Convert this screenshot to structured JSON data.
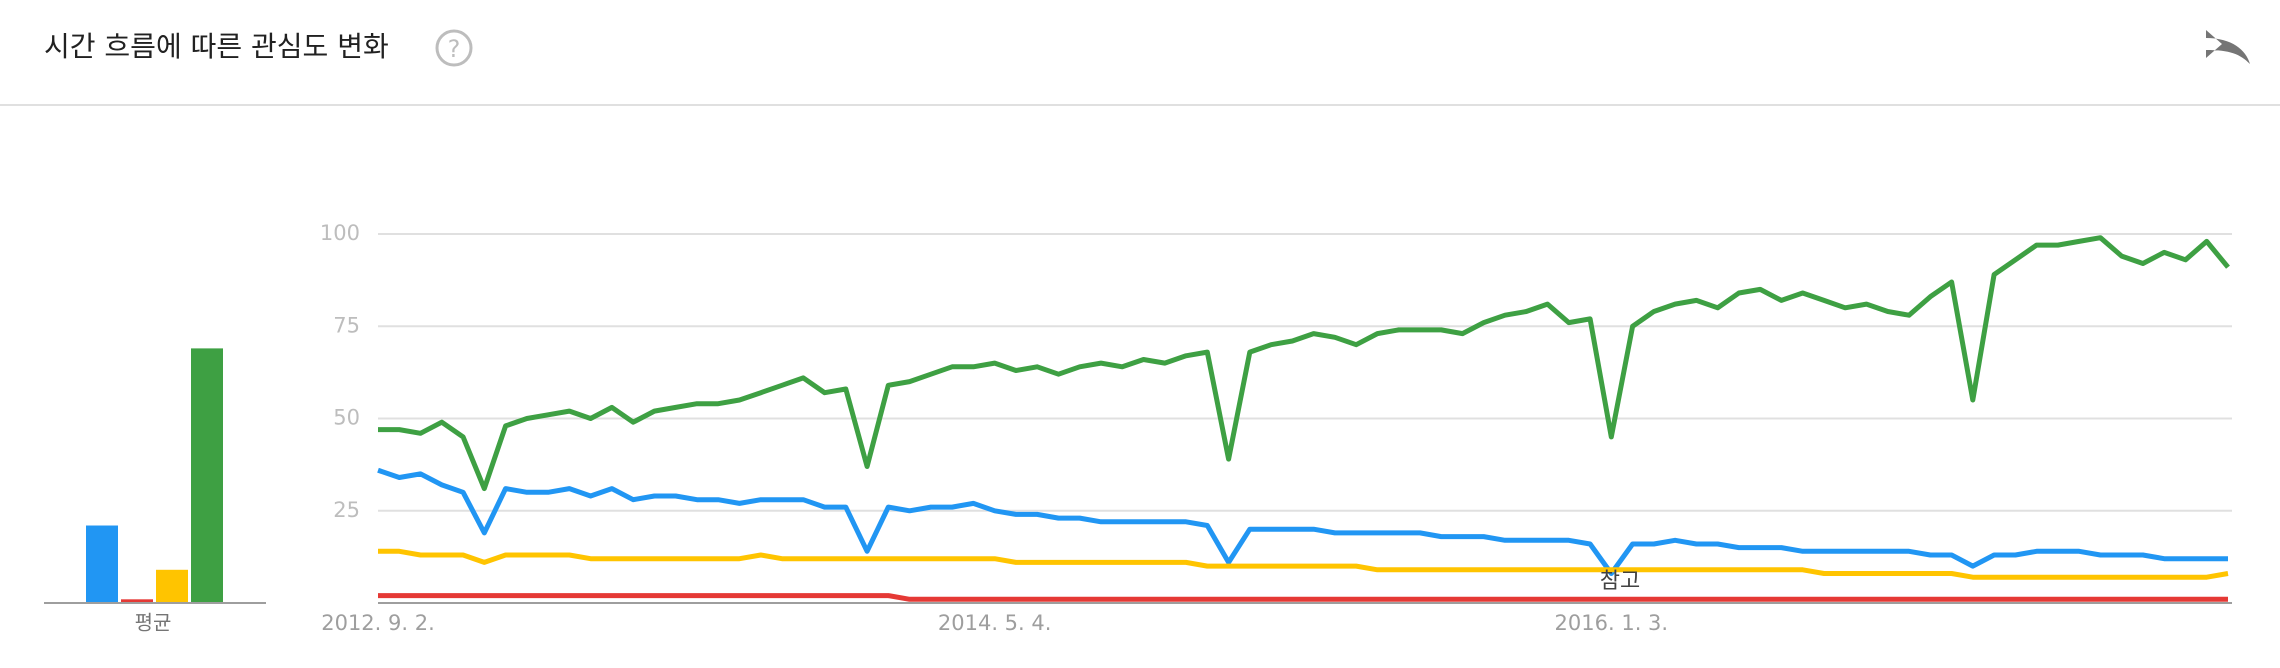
{
  "header": {
    "title": "시간 흐름에 따른 관심도 변화"
  },
  "annotation": "참고",
  "chart_data": [
    {
      "type": "bar",
      "categories": [
        "평균"
      ],
      "series": [
        {
          "color": "#2196f3",
          "values": [
            21
          ]
        },
        {
          "color": "#e53935",
          "values": [
            1
          ]
        },
        {
          "color": "#ffc400",
          "values": [
            9
          ]
        },
        {
          "color": "#3ea043",
          "values": [
            69
          ]
        }
      ],
      "ylim": [
        0,
        100
      ]
    },
    {
      "type": "line",
      "categories": [
        "2012. 9. 2.",
        null,
        null,
        null,
        null,
        null,
        null,
        null,
        null,
        null,
        null,
        null,
        null,
        null,
        null,
        null,
        null,
        null,
        null,
        null,
        null,
        null,
        null,
        null,
        null,
        null,
        null,
        null,
        null,
        "2014. 5. 4.",
        null,
        null,
        null,
        null,
        null,
        null,
        null,
        null,
        null,
        null,
        null,
        null,
        null,
        null,
        null,
        null,
        null,
        null,
        null,
        null,
        null,
        null,
        null,
        null,
        null,
        null,
        null,
        null,
        "2016. 1. 3.",
        null,
        null,
        null,
        null,
        null,
        null,
        null,
        null,
        null,
        null,
        null,
        null,
        null,
        null,
        null,
        null,
        null,
        null,
        null,
        null,
        null,
        null,
        null,
        null,
        null,
        null,
        null,
        null,
        null
      ],
      "series": [
        {
          "color": "#2196f3",
          "values": [
            36,
            34,
            35,
            32,
            30,
            19,
            31,
            30,
            30,
            31,
            29,
            31,
            28,
            29,
            29,
            28,
            28,
            27,
            28,
            28,
            28,
            26,
            26,
            14,
            26,
            25,
            26,
            26,
            27,
            25,
            24,
            24,
            23,
            23,
            22,
            22,
            22,
            22,
            22,
            21,
            11,
            20,
            20,
            20,
            20,
            19,
            19,
            19,
            19,
            19,
            18,
            18,
            18,
            17,
            17,
            17,
            17,
            16,
            8,
            16,
            16,
            17,
            16,
            16,
            15,
            15,
            15,
            14,
            14,
            14,
            14,
            14,
            14,
            13,
            13,
            10,
            13,
            13,
            14,
            14,
            14,
            13,
            13,
            13,
            12,
            12,
            12,
            12
          ]
        },
        {
          "color": "#e53935",
          "values": [
            2,
            2,
            2,
            2,
            2,
            2,
            2,
            2,
            2,
            2,
            2,
            2,
            2,
            2,
            2,
            2,
            2,
            2,
            2,
            2,
            2,
            2,
            2,
            2,
            2,
            1,
            1,
            1,
            1,
            1,
            1,
            1,
            1,
            1,
            1,
            1,
            1,
            1,
            1,
            1,
            1,
            1,
            1,
            1,
            1,
            1,
            1,
            1,
            1,
            1,
            1,
            1,
            1,
            1,
            1,
            1,
            1,
            1,
            1,
            1,
            1,
            1,
            1,
            1,
            1,
            1,
            1,
            1,
            1,
            1,
            1,
            1,
            1,
            1,
            1,
            1,
            1,
            1,
            1,
            1,
            1,
            1,
            1,
            1,
            1,
            1,
            1,
            1
          ]
        },
        {
          "color": "#ffc400",
          "values": [
            14,
            14,
            13,
            13,
            13,
            11,
            13,
            13,
            13,
            13,
            12,
            12,
            12,
            12,
            12,
            12,
            12,
            12,
            13,
            12,
            12,
            12,
            12,
            12,
            12,
            12,
            12,
            12,
            12,
            12,
            11,
            11,
            11,
            11,
            11,
            11,
            11,
            11,
            11,
            10,
            10,
            10,
            10,
            10,
            10,
            10,
            10,
            9,
            9,
            9,
            9,
            9,
            9,
            9,
            9,
            9,
            9,
            9,
            9,
            9,
            9,
            9,
            9,
            9,
            9,
            9,
            9,
            9,
            8,
            8,
            8,
            8,
            8,
            8,
            8,
            7,
            7,
            7,
            7,
            7,
            7,
            7,
            7,
            7,
            7,
            7,
            7,
            8
          ]
        },
        {
          "color": "#3ea043",
          "values": [
            47,
            47,
            46,
            49,
            45,
            31,
            48,
            50,
            51,
            52,
            50,
            53,
            49,
            52,
            53,
            54,
            54,
            55,
            57,
            59,
            61,
            57,
            58,
            37,
            59,
            60,
            62,
            64,
            64,
            65,
            63,
            64,
            62,
            64,
            65,
            64,
            66,
            65,
            67,
            68,
            39,
            68,
            70,
            71,
            73,
            72,
            70,
            73,
            74,
            74,
            74,
            73,
            76,
            78,
            79,
            81,
            76,
            77,
            45,
            75,
            79,
            81,
            82,
            80,
            84,
            85,
            82,
            84,
            82,
            80,
            81,
            79,
            78,
            83,
            87,
            55,
            89,
            93,
            97,
            97,
            98,
            99,
            94,
            92,
            95,
            93,
            98,
            91
          ]
        }
      ],
      "ylim": [
        0,
        100
      ],
      "yticks": [
        25,
        50,
        75,
        100
      ],
      "grid": true
    }
  ]
}
